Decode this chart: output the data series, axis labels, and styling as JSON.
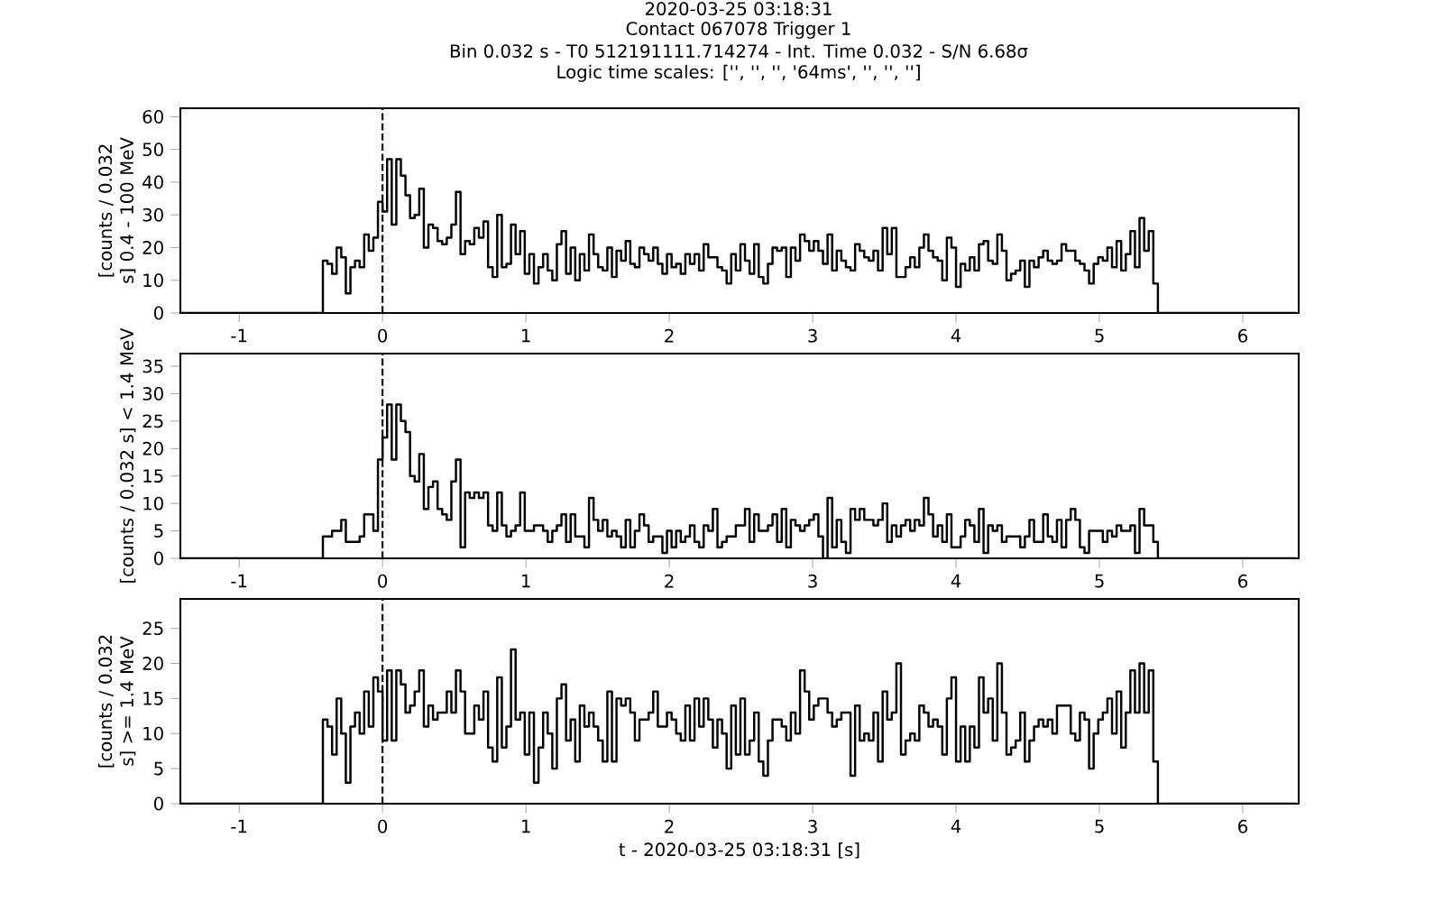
{
  "chart_data": [
    {
      "type": "step",
      "title": "2020-03-25 03:18:31",
      "subtitle": "Contact 067078   Trigger 1",
      "annotations": [
        "Bin 0.032 s -  T0 512191111.714274 - Int. Time 0.032 - S/N 6.68σ",
        "Logic time scales: ['', '', '', '64ms', '', '', '']"
      ],
      "ylabel": "[counts / 0.032 s] 0.4 - 100 MeV",
      "xlim": [
        -1.41,
        6.39
      ],
      "xticks": [
        -1,
        0,
        1,
        2,
        3,
        4,
        5,
        6
      ],
      "ylim": [
        0,
        62.6
      ],
      "yticks": [
        0,
        10,
        20,
        30,
        40,
        50,
        60
      ],
      "ref_lines": [
        {
          "axis": "x",
          "value": 0,
          "line_style": "dashed",
          "color": "#000000"
        }
      ],
      "x": [
        -1.408,
        -0.416,
        -0.384,
        -0.352,
        -0.32,
        -0.288,
        -0.256,
        -0.224,
        -0.192,
        -0.16,
        -0.128,
        -0.096,
        -0.064,
        -0.032,
        0,
        0.032,
        0.064,
        0.096,
        0.128,
        0.16,
        0.192,
        0.224,
        0.256,
        0.288,
        0.32,
        0.352,
        0.384,
        0.416,
        0.448,
        0.48,
        0.512,
        0.544,
        0.576,
        0.608,
        0.64,
        0.672,
        0.704,
        0.736,
        0.768,
        0.8,
        0.832,
        0.864,
        0.896,
        0.928,
        0.96,
        0.992,
        1.024,
        1.056,
        1.088,
        1.12,
        1.152,
        1.184,
        1.216,
        1.248,
        1.28,
        1.312,
        1.344,
        1.376,
        1.408,
        1.44,
        1.472,
        1.504,
        1.536,
        1.568,
        1.6,
        1.632,
        1.664,
        1.696,
        1.728,
        1.76,
        1.792,
        1.824,
        1.856,
        1.888,
        1.92,
        1.952,
        1.984,
        2.016,
        2.048,
        2.08,
        2.112,
        2.144,
        2.176,
        2.208,
        2.24,
        2.272,
        2.304,
        2.336,
        2.368,
        2.4,
        2.432,
        2.464,
        2.496,
        2.528,
        2.56,
        2.592,
        2.624,
        2.656,
        2.688,
        2.72,
        2.752,
        2.784,
        2.816,
        2.848,
        2.88,
        2.912,
        2.944,
        2.976,
        3.008,
        3.04,
        3.072,
        3.104,
        3.136,
        3.168,
        3.2,
        3.232,
        3.264,
        3.296,
        3.328,
        3.36,
        3.392,
        3.424,
        3.456,
        3.488,
        3.52,
        3.552,
        3.584,
        3.616,
        3.648,
        3.68,
        3.712,
        3.744,
        3.776,
        3.808,
        3.84,
        3.872,
        3.904,
        3.936,
        3.968,
        4,
        4.032,
        4.064,
        4.096,
        4.128,
        4.16,
        4.192,
        4.224,
        4.256,
        4.288,
        4.32,
        4.352,
        4.384,
        4.416,
        4.448,
        4.48,
        4.512,
        4.544,
        4.576,
        4.608,
        4.64,
        4.672,
        4.704,
        4.736,
        4.768,
        4.8,
        4.832,
        4.864,
        4.896,
        4.928,
        4.96,
        4.992,
        5.024,
        5.056,
        5.088,
        5.12,
        5.152,
        5.184,
        5.216,
        5.248,
        5.28,
        5.312,
        5.344,
        5.376,
        5.408,
        6.368
      ],
      "series": [
        {
          "color": "#000000",
          "values": [
            0,
            16,
            15,
            12,
            20,
            17,
            6,
            14,
            16,
            14,
            24,
            19,
            23,
            34,
            31,
            47,
            27,
            47,
            42,
            36,
            29,
            30,
            38,
            20,
            27,
            26,
            22,
            21,
            23,
            27,
            37,
            18,
            22,
            21,
            26,
            23,
            28,
            14,
            11,
            30,
            14,
            15,
            27,
            18,
            25,
            12,
            18,
            9,
            14,
            18,
            13,
            10,
            21,
            25,
            12,
            20,
            10,
            18,
            13,
            24,
            18,
            14,
            13,
            20,
            11,
            19,
            16,
            22,
            15,
            14,
            20,
            18,
            16,
            20,
            15,
            12,
            18,
            14,
            15,
            12,
            18,
            15,
            18,
            13,
            21,
            17,
            17,
            14,
            13,
            9,
            18,
            13,
            21,
            16,
            12,
            21,
            11,
            9,
            15,
            20,
            19,
            20,
            11,
            20,
            16,
            24,
            22,
            19,
            22,
            19,
            15,
            24,
            13,
            19,
            16,
            14,
            13,
            21,
            19,
            17,
            16,
            19,
            13,
            26,
            18,
            26,
            11,
            11,
            14,
            17,
            14,
            20,
            24,
            19,
            17,
            16,
            10,
            23,
            20,
            8,
            15,
            13,
            17,
            13,
            21,
            22,
            16,
            15,
            24,
            19,
            10,
            12,
            13,
            16,
            8,
            16,
            14,
            17,
            19,
            16,
            15,
            16,
            21,
            19,
            19,
            16,
            15,
            13,
            9,
            15,
            17,
            16,
            20,
            14,
            22,
            13,
            18,
            25,
            14,
            29,
            19,
            25,
            9,
            0,
            0
          ]
        }
      ]
    },
    {
      "type": "step",
      "ylabel": "[counts / 0.032 s] < 1.4 MeV",
      "xlim": [
        -1.41,
        6.39
      ],
      "xticks": [
        -1,
        0,
        1,
        2,
        3,
        4,
        5,
        6
      ],
      "ylim": [
        0,
        37.3
      ],
      "yticks": [
        0,
        5,
        10,
        15,
        20,
        25,
        30,
        35
      ],
      "ref_lines": [
        {
          "axis": "x",
          "value": 0,
          "line_style": "dashed",
          "color": "#000000"
        }
      ],
      "x": [
        -1.408,
        -0.416,
        -0.384,
        -0.352,
        -0.32,
        -0.288,
        -0.256,
        -0.224,
        -0.192,
        -0.16,
        -0.128,
        -0.096,
        -0.064,
        -0.032,
        0,
        0.032,
        0.064,
        0.096,
        0.128,
        0.16,
        0.192,
        0.224,
        0.256,
        0.288,
        0.32,
        0.352,
        0.384,
        0.416,
        0.448,
        0.48,
        0.512,
        0.544,
        0.576,
        0.608,
        0.64,
        0.672,
        0.704,
        0.736,
        0.768,
        0.8,
        0.832,
        0.864,
        0.896,
        0.928,
        0.96,
        0.992,
        1.024,
        1.056,
        1.088,
        1.12,
        1.152,
        1.184,
        1.216,
        1.248,
        1.28,
        1.312,
        1.344,
        1.376,
        1.408,
        1.44,
        1.472,
        1.504,
        1.536,
        1.568,
        1.6,
        1.632,
        1.664,
        1.696,
        1.728,
        1.76,
        1.792,
        1.824,
        1.856,
        1.888,
        1.92,
        1.952,
        1.984,
        2.016,
        2.048,
        2.08,
        2.112,
        2.144,
        2.176,
        2.208,
        2.24,
        2.272,
        2.304,
        2.336,
        2.368,
        2.4,
        2.432,
        2.464,
        2.496,
        2.528,
        2.56,
        2.592,
        2.624,
        2.656,
        2.688,
        2.72,
        2.752,
        2.784,
        2.816,
        2.848,
        2.88,
        2.912,
        2.944,
        2.976,
        3.008,
        3.04,
        3.072,
        3.104,
        3.136,
        3.168,
        3.2,
        3.232,
        3.264,
        3.296,
        3.328,
        3.36,
        3.392,
        3.424,
        3.456,
        3.488,
        3.52,
        3.552,
        3.584,
        3.616,
        3.648,
        3.68,
        3.712,
        3.744,
        3.776,
        3.808,
        3.84,
        3.872,
        3.904,
        3.936,
        3.968,
        4,
        4.032,
        4.064,
        4.096,
        4.128,
        4.16,
        4.192,
        4.224,
        4.256,
        4.288,
        4.32,
        4.352,
        4.384,
        4.416,
        4.448,
        4.48,
        4.512,
        4.544,
        4.576,
        4.608,
        4.64,
        4.672,
        4.704,
        4.736,
        4.768,
        4.8,
        4.832,
        4.864,
        4.896,
        4.928,
        4.96,
        4.992,
        5.024,
        5.056,
        5.088,
        5.12,
        5.152,
        5.184,
        5.216,
        5.248,
        5.28,
        5.312,
        5.344,
        5.376,
        5.408,
        6.368
      ],
      "series": [
        {
          "color": "#000000",
          "values": [
            0,
            4,
            4,
            5,
            5,
            7,
            3,
            3,
            3,
            4,
            8,
            8,
            5,
            18,
            22,
            28,
            18,
            28,
            25,
            23,
            15,
            14,
            19,
            9,
            13,
            14,
            9,
            8,
            7,
            14,
            18,
            2,
            12,
            11,
            12,
            11,
            12,
            6,
            5,
            12,
            6,
            4,
            5,
            6,
            12,
            5,
            5,
            6,
            6,
            5,
            3,
            5,
            6,
            8,
            3,
            8,
            4,
            4,
            2,
            11,
            7,
            5,
            7,
            4,
            5,
            4,
            2,
            7,
            2,
            5,
            8,
            6,
            3,
            4,
            4,
            1,
            5,
            2,
            5,
            3,
            4,
            6,
            3,
            2,
            6,
            5,
            9,
            2,
            3,
            4,
            4,
            6,
            6,
            9,
            3,
            8,
            5,
            5,
            6,
            8,
            3,
            9,
            2,
            7,
            6,
            5,
            6,
            7,
            8,
            4,
            0,
            11,
            2,
            7,
            3,
            1,
            9,
            7,
            9,
            7,
            7,
            6,
            7,
            10,
            3,
            6,
            4,
            6,
            7,
            5,
            7,
            6,
            11,
            8,
            4,
            6,
            3,
            8,
            2,
            2,
            4,
            7,
            6,
            3,
            9,
            1,
            6,
            5,
            6,
            3,
            4,
            4,
            4,
            2,
            4,
            7,
            3,
            3,
            8,
            4,
            3,
            7,
            2,
            7,
            9,
            7,
            2,
            1,
            5,
            5,
            5,
            3,
            5,
            4,
            6,
            5,
            5,
            6,
            1,
            9,
            6,
            6,
            3,
            0,
            0
          ]
        }
      ]
    },
    {
      "type": "step",
      "ylabel": "[counts / 0.032 s] >= 1.4 MeV",
      "xlabel": "t - 2020-03-25 03:18:31 [s]",
      "xlim": [
        -1.41,
        6.39
      ],
      "xticks": [
        -1,
        0,
        1,
        2,
        3,
        4,
        5,
        6
      ],
      "ylim": [
        0,
        29.2
      ],
      "yticks": [
        0,
        5,
        10,
        15,
        20,
        25
      ],
      "ref_lines": [
        {
          "axis": "x",
          "value": 0,
          "line_style": "dashed",
          "color": "#000000"
        }
      ],
      "x": [
        -1.408,
        -0.416,
        -0.384,
        -0.352,
        -0.32,
        -0.288,
        -0.256,
        -0.224,
        -0.192,
        -0.16,
        -0.128,
        -0.096,
        -0.064,
        -0.032,
        0,
        0.032,
        0.064,
        0.096,
        0.128,
        0.16,
        0.192,
        0.224,
        0.256,
        0.288,
        0.32,
        0.352,
        0.384,
        0.416,
        0.448,
        0.48,
        0.512,
        0.544,
        0.576,
        0.608,
        0.64,
        0.672,
        0.704,
        0.736,
        0.768,
        0.8,
        0.832,
        0.864,
        0.896,
        0.928,
        0.96,
        0.992,
        1.024,
        1.056,
        1.088,
        1.12,
        1.152,
        1.184,
        1.216,
        1.248,
        1.28,
        1.312,
        1.344,
        1.376,
        1.408,
        1.44,
        1.472,
        1.504,
        1.536,
        1.568,
        1.6,
        1.632,
        1.664,
        1.696,
        1.728,
        1.76,
        1.792,
        1.824,
        1.856,
        1.888,
        1.92,
        1.952,
        1.984,
        2.016,
        2.048,
        2.08,
        2.112,
        2.144,
        2.176,
        2.208,
        2.24,
        2.272,
        2.304,
        2.336,
        2.368,
        2.4,
        2.432,
        2.464,
        2.496,
        2.528,
        2.56,
        2.592,
        2.624,
        2.656,
        2.688,
        2.72,
        2.752,
        2.784,
        2.816,
        2.848,
        2.88,
        2.912,
        2.944,
        2.976,
        3.008,
        3.04,
        3.072,
        3.104,
        3.136,
        3.168,
        3.2,
        3.232,
        3.264,
        3.296,
        3.328,
        3.36,
        3.392,
        3.424,
        3.456,
        3.488,
        3.52,
        3.552,
        3.584,
        3.616,
        3.648,
        3.68,
        3.712,
        3.744,
        3.776,
        3.808,
        3.84,
        3.872,
        3.904,
        3.936,
        3.968,
        4,
        4.032,
        4.064,
        4.096,
        4.128,
        4.16,
        4.192,
        4.224,
        4.256,
        4.288,
        4.32,
        4.352,
        4.384,
        4.416,
        4.448,
        4.48,
        4.512,
        4.544,
        4.576,
        4.608,
        4.64,
        4.672,
        4.704,
        4.736,
        4.768,
        4.8,
        4.832,
        4.864,
        4.896,
        4.928,
        4.96,
        4.992,
        5.024,
        5.056,
        5.088,
        5.12,
        5.152,
        5.184,
        5.216,
        5.248,
        5.28,
        5.312,
        5.344,
        5.376,
        5.408,
        6.368
      ],
      "series": [
        {
          "color": "#000000",
          "values": [
            0,
            12,
            11,
            7,
            15,
            10,
            3,
            11,
            13,
            10,
            16,
            11,
            18,
            16,
            9,
            19,
            9,
            19,
            17,
            13,
            14,
            16,
            19,
            11,
            14,
            12,
            13,
            13,
            16,
            13,
            19,
            16,
            10,
            10,
            14,
            12,
            16,
            8,
            6,
            18,
            8,
            11,
            22,
            12,
            13,
            7,
            13,
            3,
            8,
            13,
            10,
            5,
            15,
            17,
            9,
            12,
            6,
            14,
            11,
            13,
            11,
            9,
            6,
            16,
            6,
            15,
            14,
            15,
            13,
            9,
            12,
            12,
            13,
            16,
            11,
            11,
            13,
            12,
            10,
            9,
            14,
            9,
            15,
            11,
            15,
            12,
            8,
            12,
            10,
            5,
            14,
            7,
            15,
            7,
            9,
            13,
            6,
            4,
            9,
            12,
            12,
            11,
            9,
            13,
            10,
            19,
            16,
            12,
            14,
            15,
            15,
            13,
            11,
            12,
            13,
            13,
            4,
            14,
            9,
            10,
            9,
            13,
            6,
            16,
            12,
            13,
            20,
            7,
            9,
            10,
            9,
            14,
            13,
            11,
            12,
            11,
            7,
            15,
            18,
            6,
            11,
            6,
            11,
            8,
            18,
            13,
            15,
            9,
            20,
            13,
            7,
            8,
            9,
            13,
            6,
            9,
            11,
            12,
            11,
            12,
            10,
            14,
            14,
            14,
            10,
            9,
            13,
            12,
            5,
            10,
            12,
            13,
            15,
            10,
            16,
            8,
            13,
            19,
            13,
            20,
            13,
            19,
            6,
            0,
            0
          ]
        }
      ]
    }
  ]
}
